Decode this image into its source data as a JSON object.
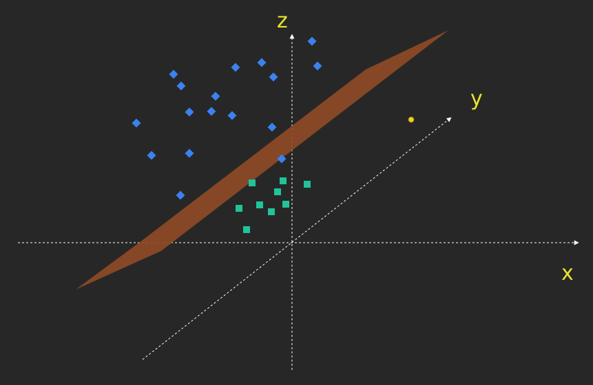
{
  "diagram": {
    "axes": {
      "x": {
        "label": "x"
      },
      "y": {
        "label": "y"
      },
      "z": {
        "label": "z"
      }
    },
    "colors": {
      "background": "#272727",
      "axis": "#ffffff",
      "axis_label": "#e8e52e",
      "class_a": "#3b82f0",
      "class_b": "#1fc49a",
      "plane": "#8e4a27",
      "query_point": "#f0d21a"
    },
    "class_a_marker": "diamond",
    "class_b_marker": "square",
    "query_marker": "circle",
    "class_a_count": 18,
    "class_b_count": 9,
    "query_count": 1
  }
}
